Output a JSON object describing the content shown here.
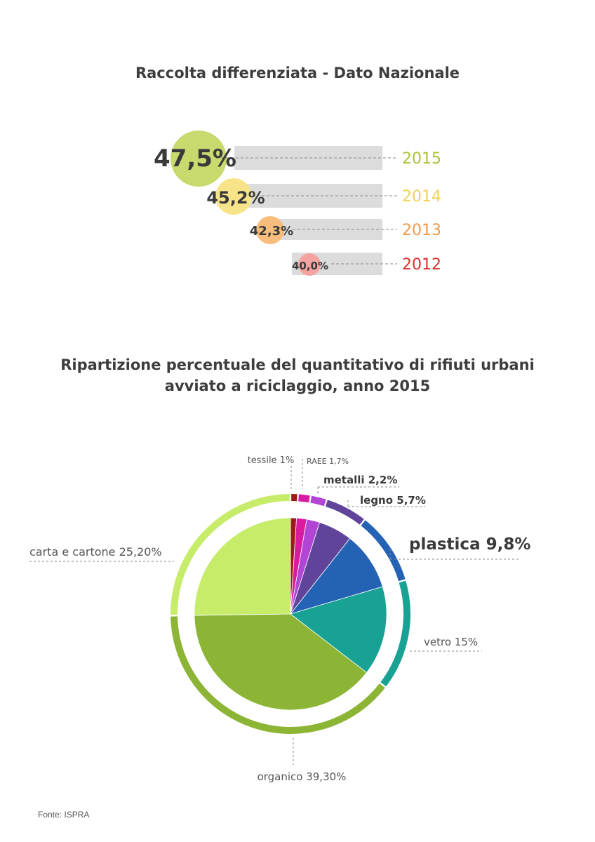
{
  "titles": {
    "bars": "Raccolta differenziata - Dato Nazionale",
    "pie_line1": "Ripartizione percentuale del quantitativo di rifiuti urbani",
    "pie_line2": "avviato a riciclaggio, anno 2015"
  },
  "source": "Fonte: ISPRA",
  "chart_data": [
    {
      "type": "bar",
      "title": "Raccolta differenziata - Dato Nazionale",
      "series": [
        {
          "year": "2015",
          "value": 47.5,
          "label": "47,5%",
          "color": "#c8d96e",
          "year_color": "#a8c43a"
        },
        {
          "year": "2014",
          "value": 45.2,
          "label": "45,2%",
          "color": "#f8e488",
          "year_color": "#efd25a"
        },
        {
          "year": "2013",
          "value": 42.3,
          "label": "42,3%",
          "color": "#f8bd7c",
          "year_color": "#ef9a4a"
        },
        {
          "year": "2012",
          "value": 40.0,
          "label": "40,0%",
          "color": "#f4a3a0",
          "year_color": "#d9312d"
        }
      ],
      "bar_color": "#dcdcdc"
    },
    {
      "type": "pie",
      "title": "Ripartizione percentuale del quantitativo di rifiuti urbani avviato a riciclaggio, anno 2015",
      "slices": [
        {
          "label": "tessile 1%",
          "value": 1.0,
          "color": "#9b1b1b"
        },
        {
          "label": "RAEE 1,7%",
          "value": 1.7,
          "color": "#d81ba0"
        },
        {
          "label": "metalli 2,2%",
          "value": 2.2,
          "color": "#b244d6"
        },
        {
          "label": "legno 5,7%",
          "value": 5.7,
          "color": "#60449a"
        },
        {
          "label": "plastica 9,8%",
          "value": 9.8,
          "color": "#2462b4"
        },
        {
          "label": "vetro 15%",
          "value": 15.0,
          "color": "#18a294"
        },
        {
          "label": "organico 39,30%",
          "value": 39.3,
          "color": "#8db535"
        },
        {
          "label": "carta e cartone 25,20%",
          "value": 25.2,
          "color": "#c7ec6a"
        }
      ]
    }
  ]
}
